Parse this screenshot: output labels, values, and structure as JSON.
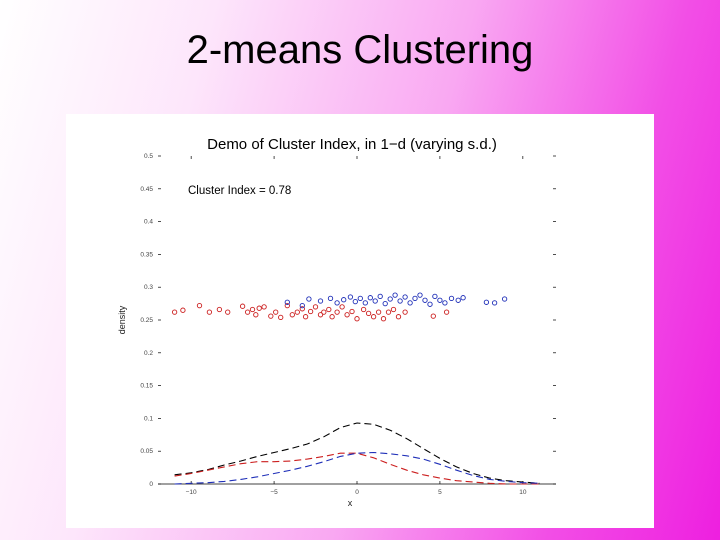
{
  "slide": {
    "title": "2-means Clustering"
  },
  "colors": {
    "red": "#cc1f1f",
    "blue": "#1f2fb8",
    "black": "#000000"
  },
  "chart_data": {
    "type": "line",
    "title": "Demo of Cluster Index, in 1−d (varying s.d.)",
    "annotation": "Cluster Index = 0.78",
    "xlabel": "x",
    "ylabel": "density",
    "xlim": [
      -12,
      12
    ],
    "ylim": [
      0,
      0.5
    ],
    "xticks": [
      -10,
      -5,
      0,
      5,
      10
    ],
    "xtick_labels": [
      "−10",
      "−5",
      "0",
      "5",
      "10"
    ],
    "yticks": [
      0,
      0.05,
      0.1,
      0.15,
      0.2,
      0.25,
      0.3,
      0.35,
      0.4,
      0.45,
      0.5
    ],
    "ytick_labels": [
      "0",
      "0.05",
      "0.1",
      "0.15",
      "0.2",
      "0.25",
      "0.3",
      "0.35",
      "0.4",
      "0.45",
      "0.5"
    ],
    "series": [
      {
        "color": "#000000",
        "style": "dashed",
        "x": [
          -11,
          -10,
          -9,
          -8,
          -7,
          -6,
          -5,
          -4,
          -3,
          -2,
          -1,
          0,
          1,
          2,
          3,
          4,
          5,
          6,
          7,
          8,
          9,
          10,
          11
        ],
        "y": [
          0.014,
          0.017,
          0.022,
          0.029,
          0.035,
          0.042,
          0.048,
          0.054,
          0.061,
          0.072,
          0.086,
          0.093,
          0.091,
          0.082,
          0.069,
          0.054,
          0.039,
          0.026,
          0.016,
          0.009,
          0.005,
          0.003,
          0.001
        ]
      },
      {
        "color": "#cc1f1f",
        "style": "dashed",
        "x": [
          -11,
          -10,
          -9,
          -8,
          -7,
          -6,
          -5,
          -4,
          -3,
          -2,
          -1,
          0,
          1,
          2,
          3,
          4,
          5,
          6,
          7,
          8,
          9,
          10,
          11
        ],
        "y": [
          0.012,
          0.016,
          0.021,
          0.026,
          0.031,
          0.034,
          0.034,
          0.035,
          0.038,
          0.042,
          0.047,
          0.047,
          0.04,
          0.03,
          0.021,
          0.014,
          0.009,
          0.005,
          0.003,
          0.001,
          0.0,
          0.0,
          0.0
        ]
      },
      {
        "color": "#1f2fb8",
        "style": "dashed",
        "x": [
          -11,
          -10,
          -9,
          -8,
          -7,
          -6,
          -5,
          -4,
          -3,
          -2,
          -1,
          0,
          1,
          2,
          3,
          4,
          5,
          6,
          7,
          8,
          9,
          10,
          11
        ],
        "y": [
          0.0,
          0.001,
          0.002,
          0.004,
          0.007,
          0.011,
          0.016,
          0.021,
          0.027,
          0.034,
          0.042,
          0.047,
          0.048,
          0.046,
          0.043,
          0.038,
          0.03,
          0.021,
          0.013,
          0.007,
          0.004,
          0.002,
          0.001
        ]
      }
    ],
    "points": [
      {
        "color": "#cc1f1f",
        "x": [
          -11.0,
          -10.5,
          -9.5,
          -8.9,
          -8.3,
          -7.8,
          -6.9,
          -6.6,
          -6.3,
          -6.1,
          -5.9,
          -5.6,
          -5.2,
          -4.9,
          -4.6,
          -4.2,
          -3.9,
          -3.6,
          -3.3,
          -3.1,
          -2.8,
          -2.5,
          -2.2,
          -2.0,
          -1.7,
          -1.5,
          -1.2,
          -0.9,
          -0.6,
          -0.3,
          0.0,
          0.4,
          0.7,
          1.0,
          1.3,
          1.6,
          1.9,
          2.2,
          2.5,
          2.9,
          4.6,
          5.4
        ],
        "y": [
          0.262,
          0.265,
          0.272,
          0.262,
          0.266,
          0.262,
          0.271,
          0.262,
          0.266,
          0.258,
          0.268,
          0.27,
          0.256,
          0.262,
          0.254,
          0.272,
          0.258,
          0.262,
          0.267,
          0.255,
          0.263,
          0.27,
          0.258,
          0.262,
          0.266,
          0.255,
          0.262,
          0.27,
          0.258,
          0.263,
          0.252,
          0.266,
          0.26,
          0.255,
          0.262,
          0.252,
          0.262,
          0.266,
          0.255,
          0.262,
          0.256,
          0.262
        ]
      },
      {
        "color": "#1f2fb8",
        "x": [
          -4.2,
          -3.3,
          -2.9,
          -2.2,
          -1.6,
          -1.2,
          -0.8,
          -0.4,
          -0.1,
          0.2,
          0.5,
          0.8,
          1.1,
          1.4,
          1.7,
          2.0,
          2.3,
          2.6,
          2.9,
          3.2,
          3.5,
          3.8,
          4.1,
          4.4,
          4.7,
          5.0,
          5.3,
          5.7,
          6.1,
          6.4,
          7.8,
          8.3,
          8.9
        ],
        "y": [
          0.277,
          0.272,
          0.282,
          0.279,
          0.283,
          0.276,
          0.281,
          0.285,
          0.278,
          0.283,
          0.276,
          0.284,
          0.279,
          0.286,
          0.275,
          0.282,
          0.288,
          0.279,
          0.285,
          0.276,
          0.283,
          0.288,
          0.28,
          0.274,
          0.286,
          0.28,
          0.276,
          0.283,
          0.28,
          0.284,
          0.277,
          0.276,
          0.282
        ]
      }
    ]
  }
}
